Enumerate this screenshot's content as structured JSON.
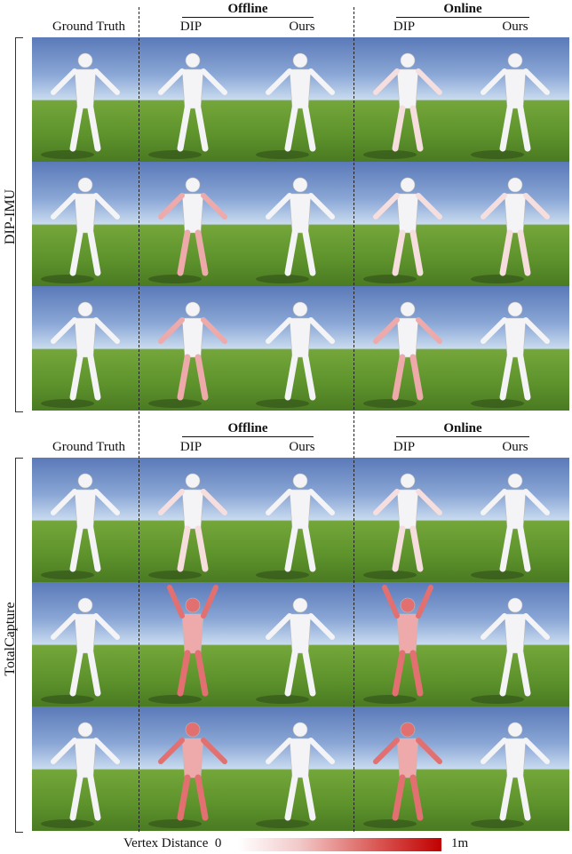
{
  "sections": [
    {
      "label": "DIP-IMU",
      "ground_truth": "Ground Truth",
      "groups": [
        {
          "title": "Offline",
          "columns": [
            "DIP",
            "Ours"
          ]
        },
        {
          "title": "Online",
          "columns": [
            "DIP",
            "Ours"
          ]
        }
      ]
    },
    {
      "label": "TotalCapture",
      "ground_truth": "Ground Truth",
      "groups": [
        {
          "title": "Offline",
          "columns": [
            "DIP",
            "Ours"
          ]
        },
        {
          "title": "Online",
          "columns": [
            "DIP",
            "Ours"
          ]
        }
      ]
    }
  ],
  "legend": {
    "label": "Vertex Distance",
    "min": "0",
    "max": "1m"
  },
  "colors": {
    "error_high": "#c00000",
    "error_low": "#ffffff",
    "sky": "#8ba7d6",
    "grass": "#5e932c"
  }
}
